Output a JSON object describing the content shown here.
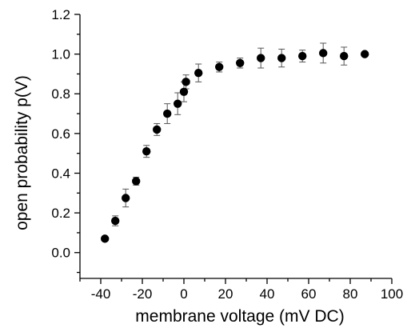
{
  "chart_data": {
    "type": "scatter",
    "xlabel": "membrane voltage (mV DC)",
    "ylabel": "open probability p(V)",
    "xlim": [
      -50,
      100
    ],
    "ylim": [
      -0.13,
      1.2
    ],
    "xticks": [
      -40,
      -20,
      0,
      20,
      40,
      60,
      80,
      100
    ],
    "xtick_labels": [
      "-40",
      "-20",
      "0",
      "20",
      "40",
      "60",
      "80",
      "100"
    ],
    "yticks": [
      0.0,
      0.2,
      0.4,
      0.6,
      0.8,
      1.0,
      1.2
    ],
    "ytick_labels": [
      "0.0",
      "0.2",
      "0.4",
      "0.6",
      "0.8",
      "1.0",
      "1.2"
    ],
    "grid": false,
    "marker_color": "#000000",
    "errorbar_color": "#555555",
    "points": [
      {
        "x": -38,
        "y": 0.07,
        "err": 0.0
      },
      {
        "x": -33,
        "y": 0.16,
        "err": 0.025
      },
      {
        "x": -28,
        "y": 0.275,
        "err": 0.045
      },
      {
        "x": -23,
        "y": 0.36,
        "err": 0.02
      },
      {
        "x": -18,
        "y": 0.51,
        "err": 0.03
      },
      {
        "x": -13,
        "y": 0.62,
        "err": 0.03
      },
      {
        "x": -8,
        "y": 0.7,
        "err": 0.05
      },
      {
        "x": -3,
        "y": 0.75,
        "err": 0.055
      },
      {
        "x": 0,
        "y": 0.81,
        "err": 0.05
      },
      {
        "x": 1,
        "y": 0.86,
        "err": 0.035
      },
      {
        "x": 7,
        "y": 0.905,
        "err": 0.045
      },
      {
        "x": 17,
        "y": 0.935,
        "err": 0.025
      },
      {
        "x": 27,
        "y": 0.955,
        "err": 0.025
      },
      {
        "x": 37,
        "y": 0.98,
        "err": 0.05
      },
      {
        "x": 47,
        "y": 0.98,
        "err": 0.045
      },
      {
        "x": 57,
        "y": 0.99,
        "err": 0.03
      },
      {
        "x": 67,
        "y": 1.005,
        "err": 0.05
      },
      {
        "x": 77,
        "y": 0.99,
        "err": 0.045
      },
      {
        "x": 87,
        "y": 1.0,
        "err": 0.01
      }
    ]
  }
}
